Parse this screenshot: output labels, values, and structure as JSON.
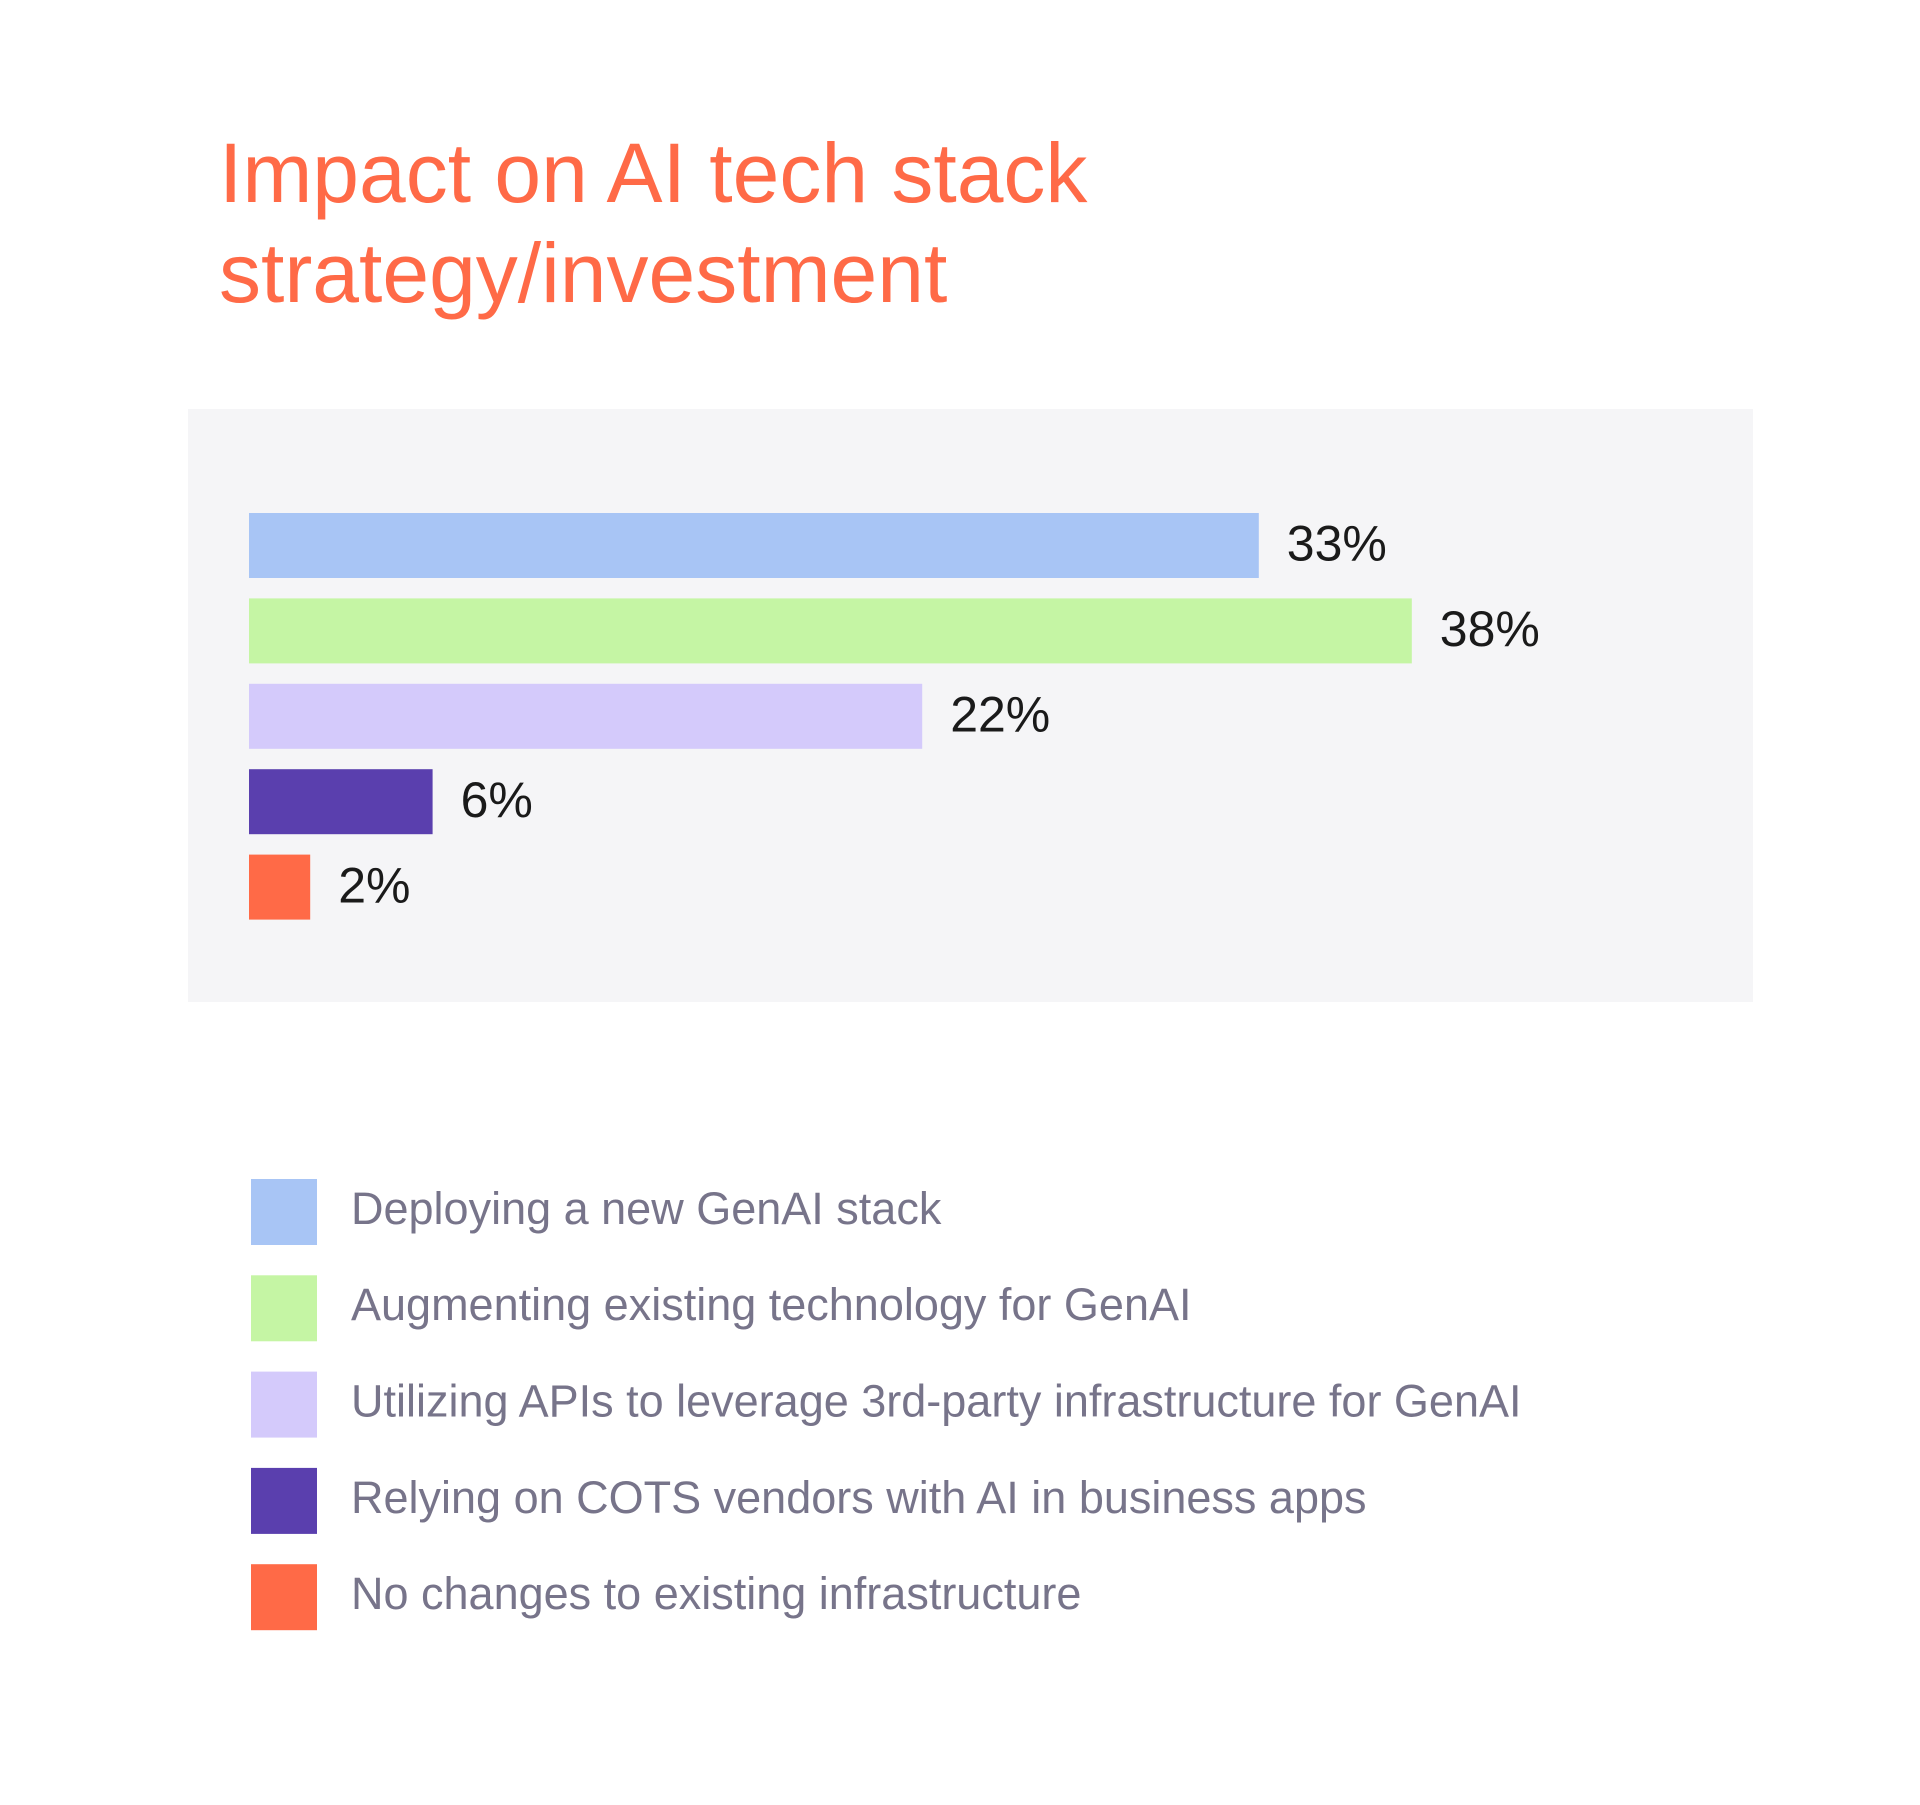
{
  "chart_data": {
    "type": "bar",
    "orientation": "horizontal",
    "title": [
      "Impact on AI tech stack",
      "strategy/investment"
    ],
    "categories": [
      "Deploying a new GenAI stack",
      "Augmenting existing technology for GenAI",
      "Utilizing APIs to leverage 3rd-party infrastructure for GenAI",
      "Relying on COTS vendors with AI in business apps",
      "No changes to existing infrastructure"
    ],
    "values": [
      33,
      38,
      22,
      6,
      2
    ],
    "value_labels": [
      "33%",
      "38%",
      "22%",
      "6%",
      "2%"
    ],
    "colors": [
      "#a8c5f5",
      "#c5f5a4",
      "#d4cafb",
      "#5a3fae",
      "#ff6a47"
    ],
    "title_color": "#ff6a47"
  }
}
